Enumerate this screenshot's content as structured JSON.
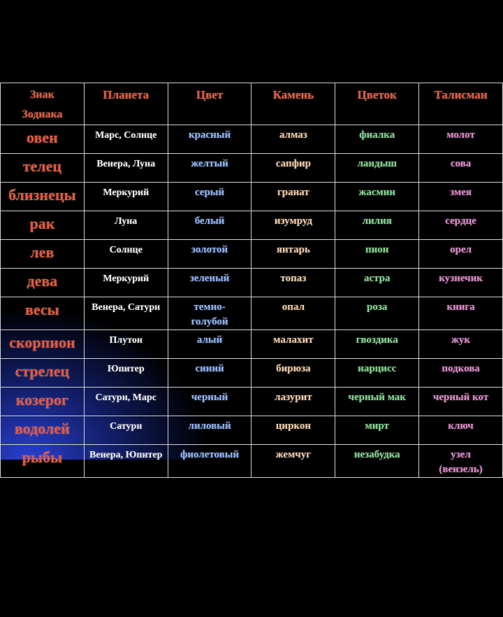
{
  "table": {
    "header": [
      "Знак\nЗодиака",
      "Планета",
      "Цвет",
      "Камень",
      "Цветок",
      "Талисман"
    ],
    "rows": [
      [
        "овен",
        "Марс, Солнце",
        "красный",
        "алмаз",
        "фиалка",
        "молот"
      ],
      [
        "телец",
        "Венера, Луна",
        "желтый",
        "сапфир",
        "ландыш",
        "сова"
      ],
      [
        "близнецы",
        "Меркурий",
        "серый",
        "гранат",
        "жасмин",
        "змея"
      ],
      [
        "рак",
        "Луна",
        "белый",
        "изумруд",
        "лилия",
        "сердце"
      ],
      [
        "лев",
        "Солнце",
        "золотой",
        "янтарь",
        "пион",
        "орел"
      ],
      [
        "дева",
        "Меркурий",
        "зеленый",
        "топаз",
        "астра",
        "кузнечик"
      ],
      [
        "весы",
        "Венера, Сатурн",
        "темно-\nголубой",
        "опал",
        "роза",
        "книга"
      ],
      [
        "скорпион",
        "Плутон",
        "алый",
        "малахит",
        "гвоздика",
        "жук"
      ],
      [
        "стрелец",
        "Юпитер",
        "синий",
        "бирюза",
        "нарцисс",
        "подкова"
      ],
      [
        "козерог",
        "Сатурн, Марс",
        "черный",
        "лазурит",
        "черный мак",
        "черный кот"
      ],
      [
        "водолей",
        "Сатурн",
        "лиловый",
        "циркон",
        "мирт",
        "ключ"
      ],
      [
        "рыбы",
        "Венера, Юпитер",
        "фиолетовый",
        "жемчуг",
        "незабудка",
        "узел\n(вензель)"
      ]
    ]
  }
}
